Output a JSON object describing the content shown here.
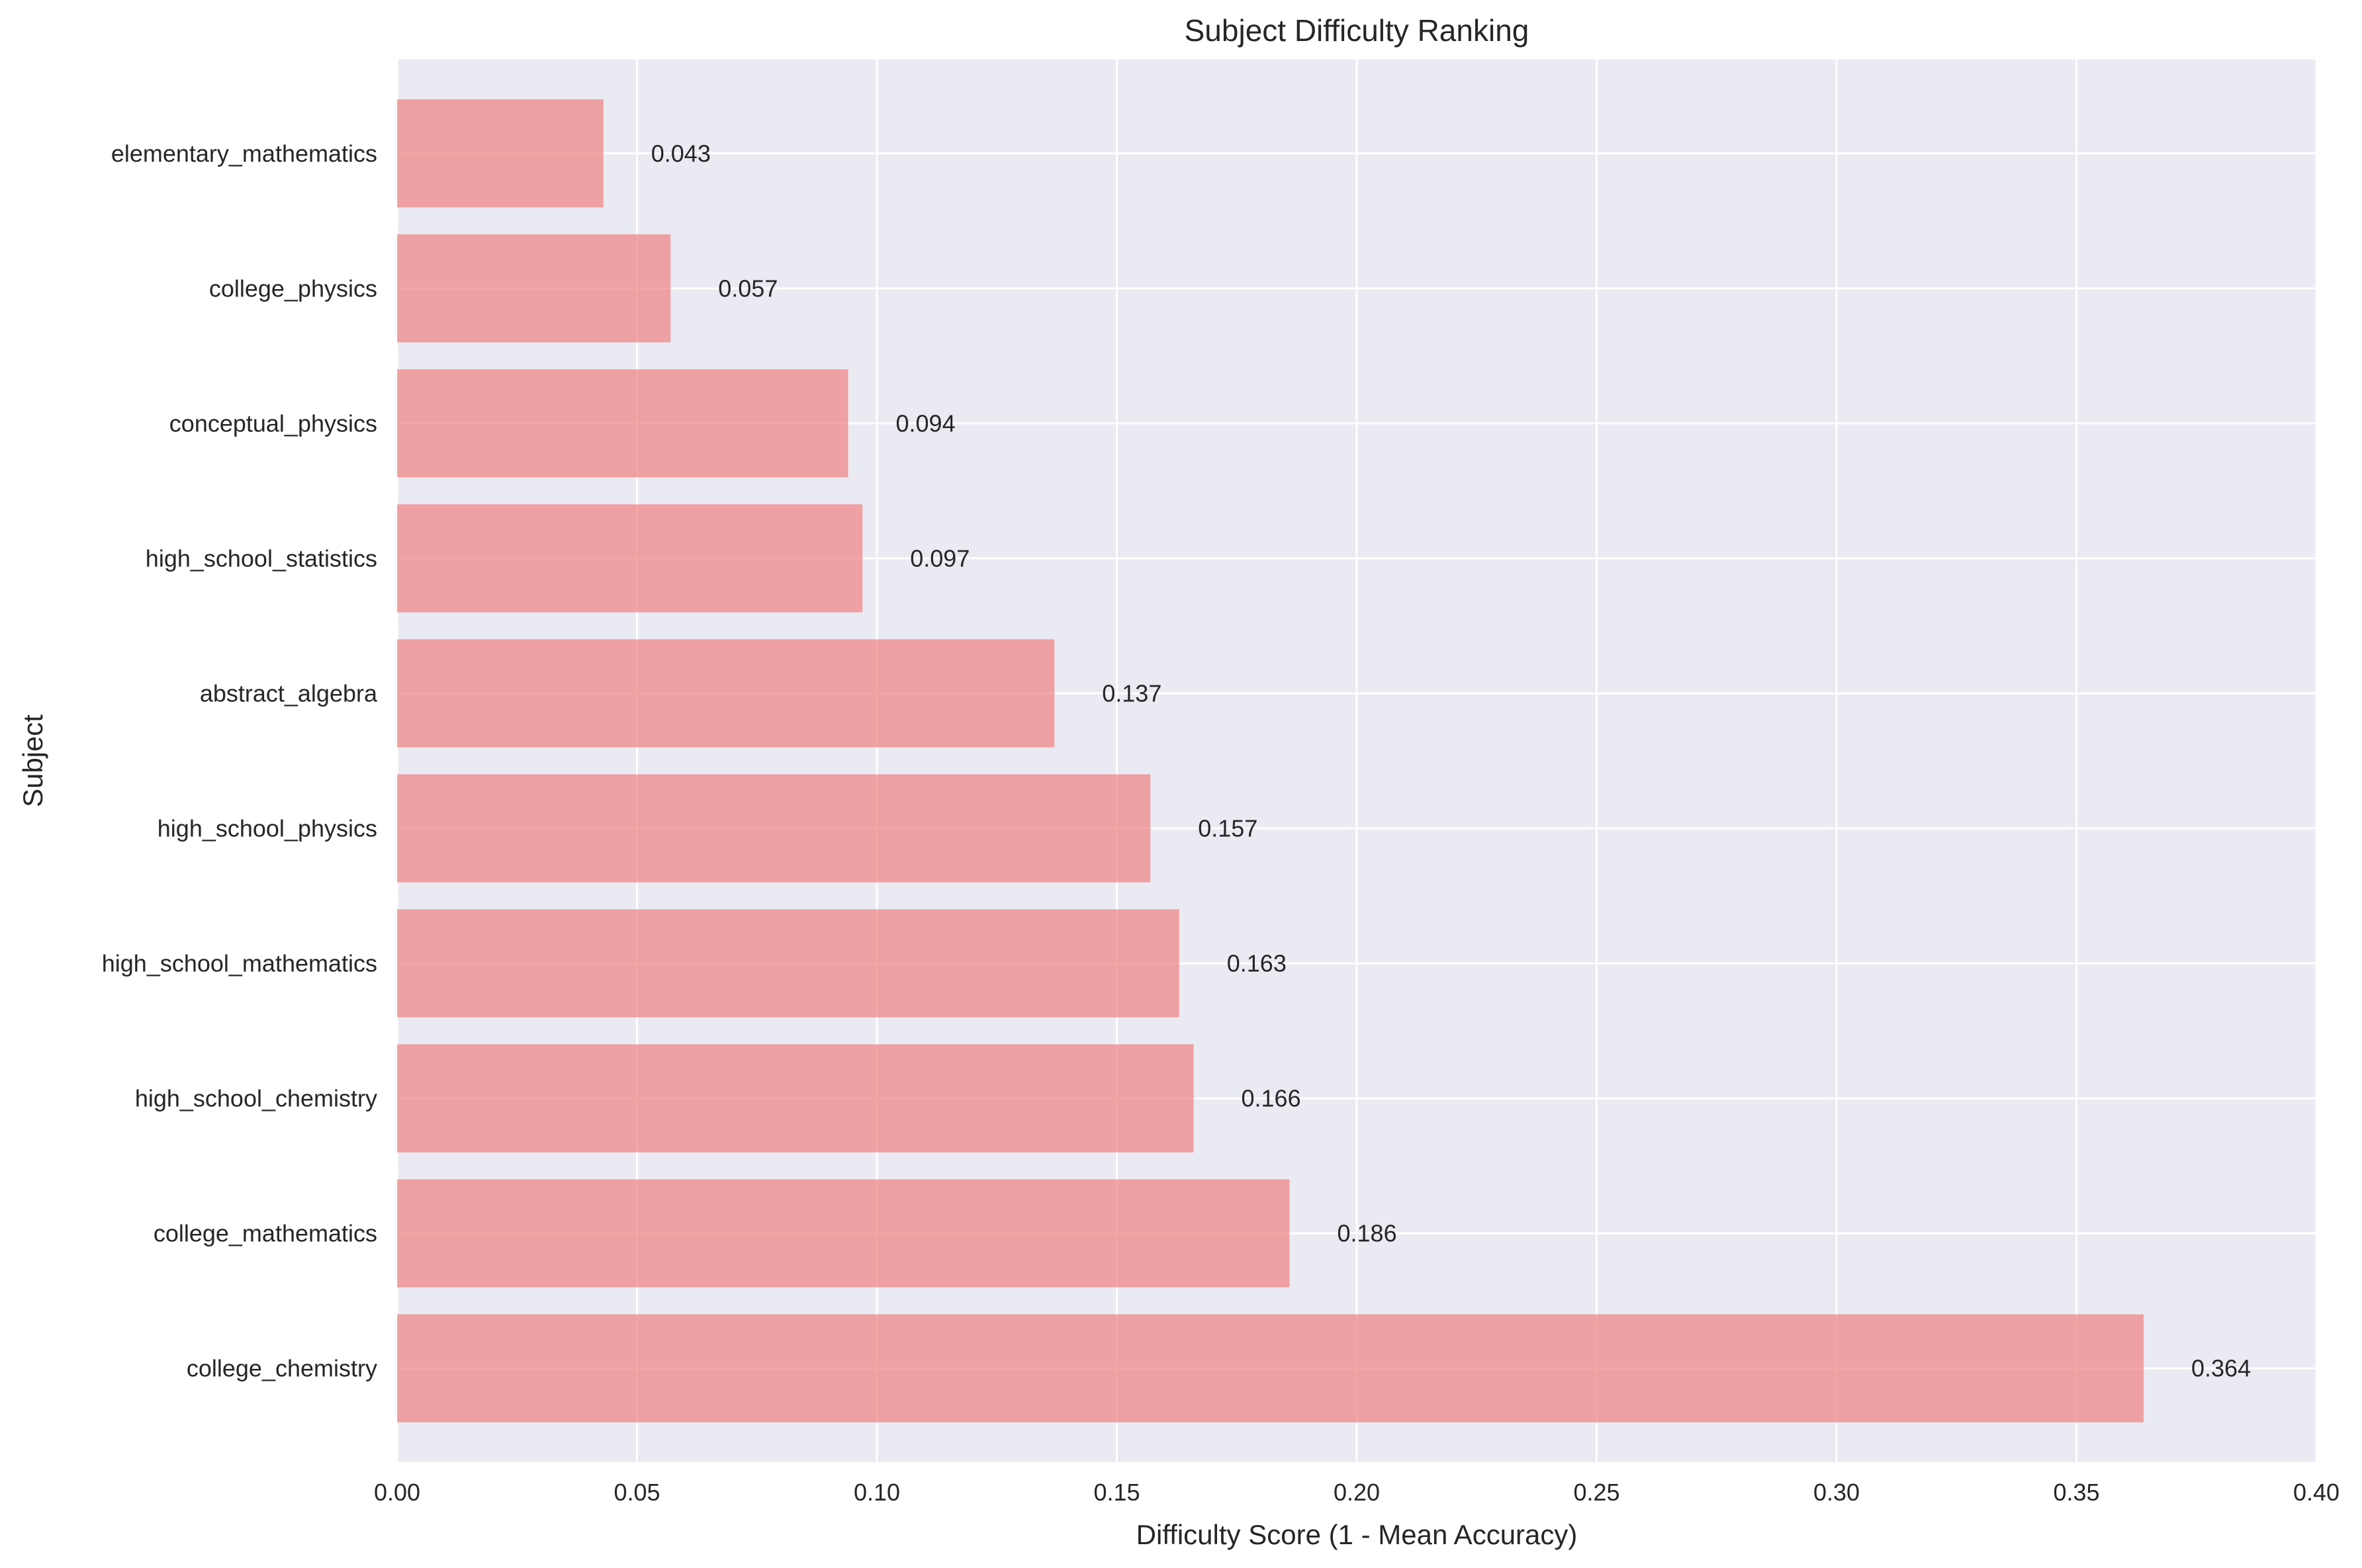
{
  "chart_data": {
    "type": "bar",
    "orientation": "horizontal",
    "title": "Subject Difficulty Ranking",
    "xlabel": "Difficulty Score (1 - Mean Accuracy)",
    "ylabel": "Subject",
    "xlim": [
      0,
      0.4
    ],
    "xticks": [
      "0.00",
      "0.05",
      "0.10",
      "0.15",
      "0.20",
      "0.25",
      "0.30",
      "0.35",
      "0.40"
    ],
    "xtick_values": [
      0,
      0.05,
      0.1,
      0.15,
      0.2,
      0.25,
      0.3,
      0.35,
      0.4
    ],
    "categories": [
      "elementary_mathematics",
      "college_physics",
      "conceptual_physics",
      "high_school_statistics",
      "abstract_algebra",
      "high_school_physics",
      "high_school_mathematics",
      "high_school_chemistry",
      "college_mathematics",
      "college_chemistry"
    ],
    "values": [
      0.043,
      0.057,
      0.094,
      0.097,
      0.137,
      0.157,
      0.163,
      0.166,
      0.186,
      0.364
    ],
    "value_labels": [
      "0.043",
      "0.057",
      "0.094",
      "0.097",
      "0.137",
      "0.157",
      "0.163",
      "0.166",
      "0.186",
      "0.364"
    ],
    "grid": true,
    "colors": {
      "bar": "#f08080",
      "plot_background": "#eaeaf2",
      "grid": "#ffffff",
      "text": "#262626"
    }
  }
}
